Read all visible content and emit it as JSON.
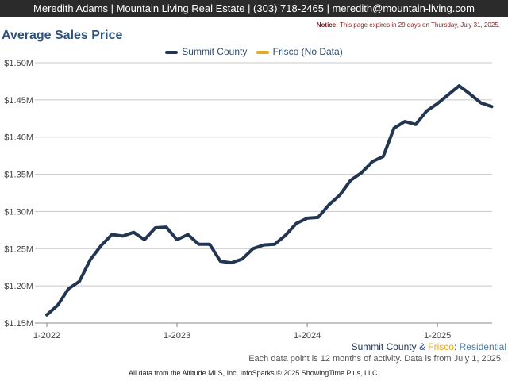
{
  "header": {
    "contact": "Meredith Adams | Mountain Living Real Estate | (303) 718-2465 | meredith@mountain-living.com"
  },
  "notice": {
    "label": "Notice:",
    "text": "This page expires in 29 days on Thursday, July 31, 2025."
  },
  "legend": {
    "items": [
      {
        "label": "Summit County",
        "color": "#223651"
      },
      {
        "label": "Frisco (No Data)",
        "color": "#e6a820"
      }
    ]
  },
  "footer": {
    "region_a": "Summit County",
    "amp": " & ",
    "region_b": "Frisco",
    "colon": ": ",
    "segment": "Residential",
    "note": "Each data point is 12 months of activity. Data is from July 1, 2025.",
    "source": "All data from the Altitude MLS, Inc. InfoSparks © 2025 ShowingTime Plus, LLC."
  },
  "colors": {
    "series": "#223651",
    "frisco": "#e6a820",
    "title": "#2e5279",
    "residential": "#4a7fb0"
  },
  "chart_data": {
    "type": "line",
    "title": "Average Sales Price",
    "ylim": [
      1.15,
      1.5
    ],
    "yticks": [
      "$1.15M",
      "$1.20M",
      "$1.25M",
      "$1.30M",
      "$1.35M",
      "$1.40M",
      "$1.45M",
      "$1.50M"
    ],
    "ytick_values": [
      1.15,
      1.2,
      1.25,
      1.3,
      1.35,
      1.4,
      1.45,
      1.5
    ],
    "xticks": [
      "1-2022",
      "1-2023",
      "1-2024",
      "1-2025"
    ],
    "grid": true,
    "legend_position": "top-center",
    "series": [
      {
        "name": "Summit County",
        "unit": "$M",
        "x": [
          "2022-01",
          "2022-02",
          "2022-03",
          "2022-04",
          "2022-05",
          "2022-06",
          "2022-07",
          "2022-08",
          "2022-09",
          "2022-10",
          "2022-11",
          "2022-12",
          "2023-01",
          "2023-02",
          "2023-03",
          "2023-04",
          "2023-05",
          "2023-06",
          "2023-07",
          "2023-08",
          "2023-09",
          "2023-10",
          "2023-11",
          "2023-12",
          "2024-01",
          "2024-02",
          "2024-03",
          "2024-04",
          "2024-05",
          "2024-06",
          "2024-07",
          "2024-08",
          "2024-09",
          "2024-10",
          "2024-11",
          "2024-12",
          "2025-01",
          "2025-02",
          "2025-03",
          "2025-04",
          "2025-05",
          "2025-06"
        ],
        "values": [
          1.161,
          1.174,
          1.196,
          1.206,
          1.235,
          1.254,
          1.269,
          1.267,
          1.272,
          1.262,
          1.278,
          1.279,
          1.262,
          1.269,
          1.256,
          1.256,
          1.233,
          1.231,
          1.236,
          1.25,
          1.255,
          1.256,
          1.268,
          1.284,
          1.291,
          1.292,
          1.309,
          1.322,
          1.342,
          1.352,
          1.367,
          1.374,
          1.412,
          1.421,
          1.417,
          1.435,
          1.445,
          1.457,
          1.469,
          1.458,
          1.446,
          1.441
        ]
      },
      {
        "name": "Frisco (No Data)",
        "values": []
      }
    ]
  }
}
